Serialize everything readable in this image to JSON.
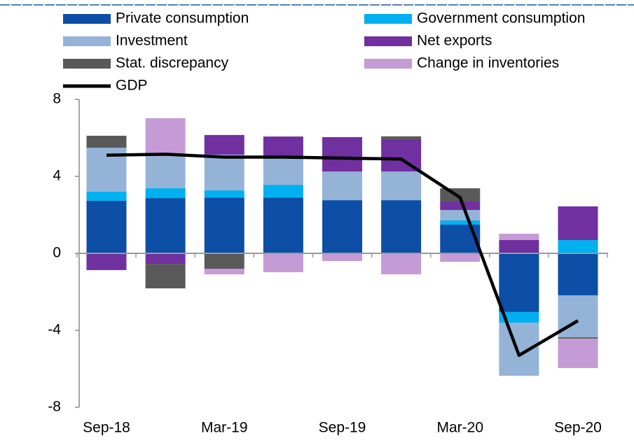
{
  "chart_data": {
    "type": "bar",
    "stacked": true,
    "categories": [
      "Sep-18",
      null,
      "Mar-19",
      null,
      "Sep-19",
      null,
      "Mar-20",
      null,
      "Sep-20"
    ],
    "series": [
      {
        "name": "Private consumption",
        "type": "bar",
        "color": "#0d4ea6",
        "values": [
          2.73,
          2.87,
          2.9,
          2.9,
          2.76,
          2.76,
          1.49,
          -3.05,
          -2.18
        ]
      },
      {
        "name": "Government consumption",
        "type": "bar",
        "color": "#00b0f0",
        "values": [
          0.47,
          0.51,
          0.37,
          0.66,
          0,
          0,
          0.22,
          -0.55,
          0.69
        ]
      },
      {
        "name": "Investment",
        "type": "bar",
        "color": "#95b3d7",
        "values": [
          2.29,
          1.67,
          1.86,
          1.49,
          1.49,
          1.49,
          0.54,
          -2.76,
          -2.18
        ]
      },
      {
        "name": "Net exports",
        "type": "bar",
        "color": "#7030a0",
        "values": [
          -0.87,
          -0.55,
          1.02,
          1.02,
          1.79,
          1.68,
          0.44,
          0.69,
          1.75
        ]
      },
      {
        "name": "Stat. discrepancy",
        "type": "bar",
        "color": "#595959",
        "values": [
          0.62,
          -1.27,
          -0.8,
          0,
          0,
          0.15,
          0.69,
          0,
          -0.07
        ]
      },
      {
        "name": "Change in inventories",
        "type": "bar",
        "color": "#c49bd4",
        "values": [
          0,
          1.97,
          -0.29,
          -0.98,
          -0.4,
          -1.09,
          -0.44,
          0.33,
          -1.53
        ]
      },
      {
        "name": "GDP",
        "type": "line",
        "color": "#000000",
        "values": [
          5.1,
          5.15,
          5.0,
          5.0,
          4.95,
          4.9,
          2.9,
          -5.3,
          -3.5
        ]
      }
    ],
    "ylim": [
      -8,
      8
    ],
    "yticks": [
      -8,
      -4,
      0,
      4,
      8
    ]
  }
}
